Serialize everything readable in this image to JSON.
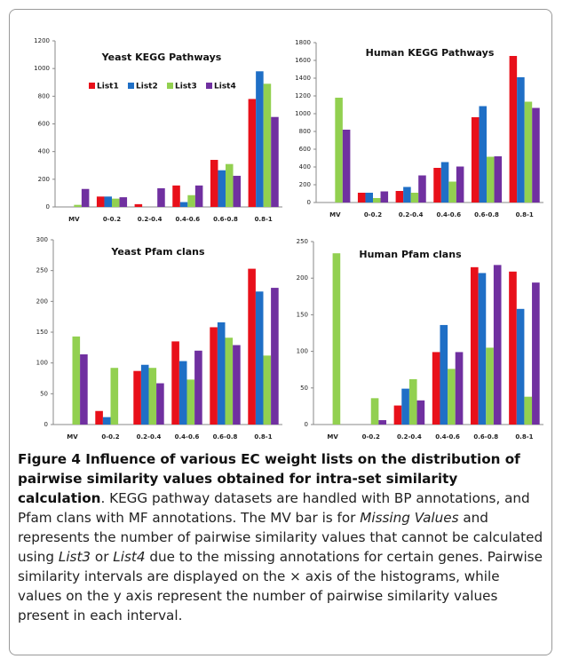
{
  "chart_data": [
    {
      "type": "bar",
      "title": "Yeast KEGG Pathways",
      "categories": [
        "MV",
        "0-0.2",
        "0.2-0.4",
        "0.4-0.6",
        "0.6-0.8",
        "0.8-1"
      ],
      "series": [
        {
          "name": "List1",
          "color": "#e8101a",
          "values": [
            0,
            75,
            20,
            155,
            340,
            780
          ]
        },
        {
          "name": "List2",
          "color": "#1f6fc6",
          "values": [
            0,
            75,
            0,
            35,
            265,
            980
          ]
        },
        {
          "name": "List3",
          "color": "#92d050",
          "values": [
            15,
            60,
            0,
            85,
            310,
            890
          ]
        },
        {
          "name": "List4",
          "color": "#7030a0",
          "values": [
            130,
            70,
            135,
            155,
            225,
            650
          ]
        }
      ],
      "ylim": [
        0,
        1200
      ],
      "yticks": [
        0,
        200,
        400,
        600,
        800,
        1000,
        1200
      ],
      "legend": "top-left"
    },
    {
      "type": "bar",
      "title": "Human KEGG Pathways",
      "categories": [
        "MV",
        "0-0.2",
        "0.2-0.4",
        "0.4-0.6",
        "0.6-0.8",
        "0.8-1"
      ],
      "series": [
        {
          "color": "#e8101a",
          "values": [
            0,
            110,
            130,
            390,
            960,
            1650
          ]
        },
        {
          "color": "#1f6fc6",
          "values": [
            0,
            110,
            175,
            455,
            1085,
            1410
          ]
        },
        {
          "color": "#92d050",
          "values": [
            1180,
            50,
            110,
            235,
            515,
            1135
          ]
        },
        {
          "color": "#7030a0",
          "values": [
            820,
            125,
            305,
            405,
            520,
            1065
          ]
        }
      ],
      "ylim": [
        0,
        1800
      ],
      "yticks": [
        0,
        200,
        400,
        600,
        800,
        1000,
        1200,
        1400,
        1600,
        1800
      ]
    },
    {
      "type": "bar",
      "title": "Yeast Pfam clans",
      "categories": [
        "MV",
        "0-0.2",
        "0.2-0.4",
        "0.4-0.6",
        "0.6-0.8",
        "0.8-1"
      ],
      "series": [
        {
          "color": "#e8101a",
          "values": [
            0,
            22,
            87,
            135,
            158,
            253
          ]
        },
        {
          "color": "#1f6fc6",
          "values": [
            0,
            12,
            97,
            103,
            166,
            216
          ]
        },
        {
          "color": "#92d050",
          "values": [
            143,
            92,
            92,
            73,
            141,
            112
          ]
        },
        {
          "color": "#7030a0",
          "values": [
            114,
            0,
            67,
            120,
            129,
            222
          ]
        }
      ],
      "ylim": [
        0,
        300
      ],
      "yticks": [
        0,
        50,
        100,
        150,
        200,
        250,
        300
      ]
    },
    {
      "type": "bar",
      "title": "Human  Pfam clans",
      "categories": [
        "MV",
        "0-0.2",
        "0.2-0.4",
        "0.4-0.6",
        "0.6-0.8",
        "0.8-1"
      ],
      "series": [
        {
          "color": "#e8101a",
          "values": [
            0,
            0,
            26,
            99,
            215,
            209
          ]
        },
        {
          "color": "#1f6fc6",
          "values": [
            0,
            0,
            49,
            136,
            207,
            158
          ]
        },
        {
          "color": "#92d050",
          "values": [
            234,
            36,
            62,
            76,
            105,
            38
          ]
        },
        {
          "color": "#7030a0",
          "values": [
            0,
            6,
            33,
            99,
            218,
            194
          ]
        }
      ],
      "ylim": [
        0,
        250
      ],
      "yticks": [
        0,
        50,
        100,
        150,
        200,
        250
      ]
    }
  ],
  "caption": [
    "Figure 4 Influence of various EC weight lists on the distribution of pairwise similarity values obtained for intra-set similarity calculation",
    ". KEGG pathway datasets are handled with BP annotations, and Pfam clans with MF annotations. The MV bar is for ",
    "Missing Values",
    " and represents the number of pairwise similarity values that cannot be calculated using ",
    "List3",
    " or ",
    "List4",
    " due to the missing annotations for certain genes. Pairwise similarity intervals are displayed on the × axis of the histograms, while values on the y axis represent the number of pairwise similarity values present in each interval."
  ]
}
